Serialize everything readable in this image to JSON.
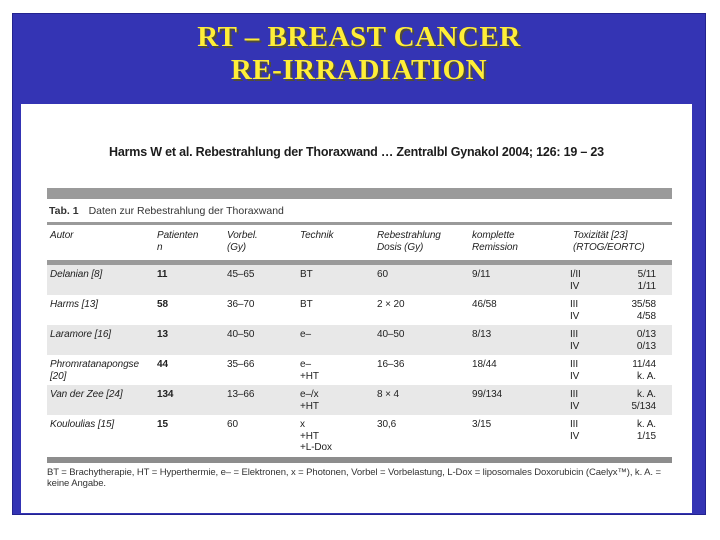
{
  "slide": {
    "title_line1": "RT – BREAST CANCER",
    "title_line2": "RE-IRRADIATION",
    "colors": {
      "background": "#3434b4",
      "title": "#ffee38",
      "panel": "#ffffff",
      "divider_gray": "#9a9a9a",
      "row_alt": "#e8e8e8"
    }
  },
  "reference": {
    "text": "Harms W et al. Rebestrahlung der Thoraxwand …  Zentralbl Gynakol 2004; 126: 19 – 23"
  },
  "table": {
    "caption_label": "Tab. 1",
    "caption_text": "Daten zur Rebestrahlung der Thoraxwand",
    "headers": {
      "autor": "Autor",
      "patienten_l1": "Patienten",
      "patienten_l2": "n",
      "vorbel_l1": "Vorbel.",
      "vorbel_l2": "(Gy)",
      "technik": "Technik",
      "dosis_l1": "Rebestrahlung",
      "dosis_l2": "Dosis (Gy)",
      "remission_l1": "komplette",
      "remission_l2": "Remission",
      "tox_l1": "Toxizität [23]",
      "tox_l2": "(RTOG/EORTC)"
    },
    "rows": [
      {
        "autor": "Delanian [8]",
        "n": "11",
        "vorbel": "45–65",
        "technik1": "BT",
        "dosis": "60",
        "remission": "9/11",
        "tox1_grade": "I/II",
        "tox1_value": "5/11",
        "tox2_grade": "IV",
        "tox2_value": "1/11"
      },
      {
        "autor": "Harms [13]",
        "n": "58",
        "vorbel": "36–70",
        "technik1": "BT",
        "dosis": "2 × 20",
        "remission": "46/58",
        "tox1_grade": "III",
        "tox1_value": "35/58",
        "tox2_grade": "IV",
        "tox2_value": "4/58"
      },
      {
        "autor": "Laramore [16]",
        "n": "13",
        "vorbel": "40–50",
        "technik1": "e–",
        "dosis": "40–50",
        "remission": "8/13",
        "tox1_grade": "III",
        "tox1_value": "0/13",
        "tox2_grade": "IV",
        "tox2_value": "0/13"
      },
      {
        "autor": "Phromratanapongse [20]",
        "n": "44",
        "vorbel": "35–66",
        "technik1": "e–",
        "technik2": "+HT",
        "dosis": "16–36",
        "remission": "18/44",
        "tox1_grade": "III",
        "tox1_value": "11/44",
        "tox2_grade": "IV",
        "tox2_value": "k. A."
      },
      {
        "autor": "Van der Zee [24]",
        "n": "134",
        "vorbel": "13–66",
        "technik1": "e–/x",
        "technik2": "+HT",
        "dosis": "8 × 4",
        "remission": "99/134",
        "tox1_grade": "III",
        "tox1_value": "k. A.",
        "tox2_grade": "IV",
        "tox2_value": "5/134"
      },
      {
        "autor": "Kouloulias [15]",
        "n": "15",
        "vorbel": "60",
        "technik1": "x",
        "technik2": "+HT",
        "technik3": "+L-Dox",
        "dosis": "30,6",
        "remission": "3/15",
        "tox1_grade": "III",
        "tox1_value": "k. A.",
        "tox2_grade": "IV",
        "tox2_value": "1/15"
      }
    ],
    "footnote": "BT = Brachytherapie, HT = Hyperthermie, e– = Elektronen, x = Photonen, Vorbel = Vorbelastung, L-Dox = liposomales Doxorubicin (Caelyx™), k. A. = keine Angabe."
  }
}
